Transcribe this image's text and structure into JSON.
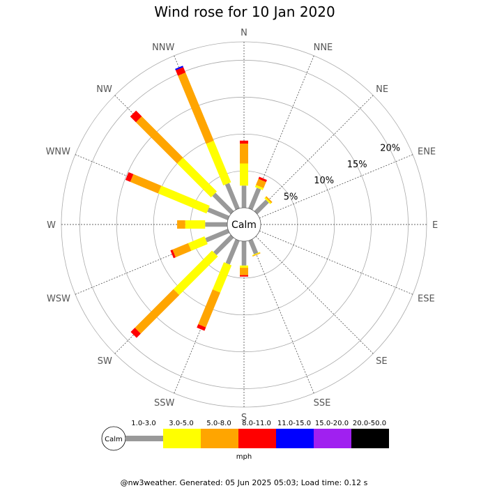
{
  "chart_data": {
    "type": "wind-rose",
    "title": "Wind rose for 10 Jan 2020",
    "directions": [
      "N",
      "NNE",
      "NE",
      "ENE",
      "E",
      "ESE",
      "SE",
      "SSE",
      "S",
      "SSW",
      "SW",
      "WSW",
      "W",
      "WNW",
      "NW",
      "NNW"
    ],
    "ring_labels": [
      "5%",
      "10%",
      "15%",
      "20%"
    ],
    "ring_values": [
      5,
      10,
      15,
      20
    ],
    "radial_max_percent": 22.5,
    "calm_label": "Calm",
    "unit_label": "mph",
    "bins": [
      {
        "label": "1.0-3.0",
        "color": "#999999"
      },
      {
        "label": "3.0-5.0",
        "color": "#ffff00"
      },
      {
        "label": "5.0-8.0",
        "color": "#ffa500"
      },
      {
        "label": "8.0-11.0",
        "color": "#ff0000"
      },
      {
        "label": "11.0-15.0",
        "color": "#0000ff"
      },
      {
        "label": "15.0-20.0",
        "color": "#a020f0"
      },
      {
        "label": "20.0-50.0",
        "color": "#000000"
      }
    ],
    "series_by_direction": [
      {
        "direction": "N",
        "cumulative_percent": [
          3.0,
          6.0,
          8.7,
          9.1,
          9.1,
          9.1,
          9.1
        ]
      },
      {
        "direction": "NNE",
        "cumulative_percent": [
          3.0,
          3.3,
          4.2,
          4.5,
          4.5,
          4.5,
          4.5
        ]
      },
      {
        "direction": "NE",
        "cumulative_percent": [
          2.2,
          2.4,
          2.6,
          2.6,
          2.6,
          2.6,
          2.6
        ]
      },
      {
        "direction": "ENE",
        "cumulative_percent": [
          0,
          0,
          0,
          0,
          0,
          0,
          0
        ]
      },
      {
        "direction": "E",
        "cumulative_percent": [
          0,
          0,
          0,
          0,
          0,
          0,
          0
        ]
      },
      {
        "direction": "ESE",
        "cumulative_percent": [
          0,
          0,
          0,
          0,
          0,
          0,
          0
        ]
      },
      {
        "direction": "SE",
        "cumulative_percent": [
          0,
          0,
          0,
          0,
          0,
          0,
          0
        ]
      },
      {
        "direction": "SSE",
        "cumulative_percent": [
          2.0,
          2.1,
          2.2,
          2.2,
          2.2,
          2.2,
          2.2
        ]
      },
      {
        "direction": "S",
        "cumulative_percent": [
          3.3,
          3.6,
          4.6,
          4.8,
          4.8,
          4.8,
          4.8
        ]
      },
      {
        "direction": "SSW",
        "cumulative_percent": [
          3.5,
          7.5,
          12.6,
          13.1,
          13.1,
          13.1,
          13.1
        ]
      },
      {
        "direction": "SW",
        "cumulative_percent": [
          3.3,
          10.7,
          18.1,
          18.9,
          18.9,
          18.9,
          18.9
        ]
      },
      {
        "direction": "WSW",
        "cumulative_percent": [
          3.3,
          5.7,
          8.0,
          8.3,
          8.3,
          8.3,
          8.3
        ]
      },
      {
        "direction": "W",
        "cumulative_percent": [
          3.0,
          5.7,
          6.8,
          6.8,
          6.8,
          6.8,
          6.8
        ]
      },
      {
        "direction": "WNW",
        "cumulative_percent": [
          3.0,
          10.1,
          14.2,
          14.9,
          14.9,
          14.9,
          14.9
        ]
      },
      {
        "direction": "NW",
        "cumulative_percent": [
          3.5,
          10.0,
          17.9,
          19.0,
          19.0,
          19.0,
          19.0
        ]
      },
      {
        "direction": "NNW",
        "cumulative_percent": [
          3.7,
          9.8,
          19.8,
          20.6,
          20.8,
          20.8,
          20.8
        ]
      }
    ],
    "grid": true
  },
  "footer": "@nw3weather. Generated: 05 Jun 2025 05:03; Load time: 0.12 s"
}
